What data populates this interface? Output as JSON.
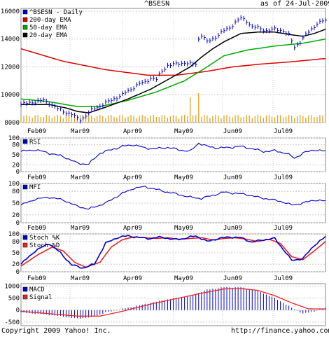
{
  "header": {
    "symbol": "^BSESN",
    "date_text": "as of 24-Jul-2009"
  },
  "footer": {
    "copyright": "Copyright 2009 Yahoo! Inc.",
    "url": "http://finance.yahoo.com/"
  },
  "months": [
    "Feb09",
    "Mar09",
    "Apr09",
    "May09",
    "Jun09",
    "Jul09"
  ],
  "chart_data": [
    {
      "type": "line",
      "legend": [
        "^BSESN - Daily",
        "200-day EMA",
        "50-day EMA",
        "20-day EMA"
      ],
      "colors": {
        "price": "#0000cc",
        "ema200": "#dd0000",
        "ema50": "#00aa00",
        "ema20": "#000000",
        "volume": "#e8a020"
      },
      "y_ticks": [
        "16000",
        "14000",
        "12000",
        "10000",
        "8000"
      ],
      "y_tick_values": [
        16000,
        14000,
        12000,
        10000,
        8000
      ],
      "ylim": [
        8000,
        16200
      ],
      "price_anchors": [
        [
          0,
          9300
        ],
        [
          5,
          9500
        ],
        [
          8,
          9600
        ],
        [
          10,
          9400
        ],
        [
          13,
          9000
        ],
        [
          15,
          8800
        ],
        [
          18,
          8600
        ],
        [
          20,
          8300
        ],
        [
          21,
          8200
        ],
        [
          23,
          8500
        ],
        [
          25,
          8900
        ],
        [
          28,
          9200
        ],
        [
          30,
          9400
        ],
        [
          33,
          9700
        ],
        [
          36,
          10000
        ],
        [
          39,
          10400
        ],
        [
          42,
          10800
        ],
        [
          44,
          10900
        ],
        [
          46,
          11200
        ],
        [
          48,
          11100
        ],
        [
          50,
          11700
        ],
        [
          52,
          12100
        ],
        [
          55,
          12200
        ],
        [
          58,
          12300
        ],
        [
          60,
          12200
        ],
        [
          62,
          12200
        ],
        [
          63,
          14000
        ],
        [
          64,
          14300
        ],
        [
          66,
          13800
        ],
        [
          68,
          14000
        ],
        [
          70,
          14300
        ],
        [
          72,
          14600
        ],
        [
          74,
          14800
        ],
        [
          76,
          15200
        ],
        [
          78,
          15500
        ],
        [
          80,
          15300
        ],
        [
          82,
          14900
        ],
        [
          84,
          14800
        ],
        [
          87,
          14600
        ],
        [
          90,
          14700
        ],
        [
          93,
          14600
        ],
        [
          95,
          14300
        ],
        [
          97,
          13400
        ],
        [
          99,
          13800
        ],
        [
          101,
          14300
        ],
        [
          103,
          14700
        ],
        [
          105,
          15100
        ],
        [
          107,
          15300
        ],
        [
          108,
          15300
        ]
      ],
      "ema200_anchors": [
        [
          0,
          13300
        ],
        [
          15,
          12400
        ],
        [
          30,
          11800
        ],
        [
          45,
          11400
        ],
        [
          55,
          11400
        ],
        [
          65,
          11650
        ],
        [
          75,
          12000
        ],
        [
          85,
          12200
        ],
        [
          95,
          12350
        ],
        [
          108,
          12600
        ]
      ],
      "ema50_anchors": [
        [
          0,
          9700
        ],
        [
          10,
          9500
        ],
        [
          20,
          9150
        ],
        [
          28,
          9150
        ],
        [
          38,
          9600
        ],
        [
          48,
          10200
        ],
        [
          58,
          11000
        ],
        [
          66,
          12000
        ],
        [
          72,
          12800
        ],
        [
          80,
          13200
        ],
        [
          90,
          13500
        ],
        [
          100,
          13700
        ],
        [
          108,
          14000
        ]
      ],
      "ema20_anchors": [
        [
          0,
          9300
        ],
        [
          10,
          9300
        ],
        [
          16,
          9050
        ],
        [
          20,
          8800
        ],
        [
          24,
          8700
        ],
        [
          30,
          9100
        ],
        [
          38,
          9700
        ],
        [
          46,
          10400
        ],
        [
          54,
          11300
        ],
        [
          60,
          12000
        ],
        [
          64,
          12700
        ],
        [
          68,
          13300
        ],
        [
          72,
          13800
        ],
        [
          78,
          14400
        ],
        [
          84,
          14500
        ],
        [
          90,
          14500
        ],
        [
          96,
          14300
        ],
        [
          100,
          14200
        ],
        [
          104,
          14400
        ],
        [
          108,
          14700
        ]
      ],
      "volume_spikes": [
        [
          60,
          12
        ],
        [
          63,
          14
        ]
      ]
    },
    {
      "type": "line",
      "legend": [
        "RSI"
      ],
      "colors": {
        "rsi": "#0000cc"
      },
      "y_ticks": [
        "100",
        "80",
        "50",
        "20",
        "0"
      ],
      "y_tick_values": [
        100,
        80,
        50,
        20,
        0
      ],
      "ylim": [
        0,
        100
      ],
      "rsi_anchors": [
        [
          0,
          60
        ],
        [
          5,
          65
        ],
        [
          10,
          55
        ],
        [
          15,
          45
        ],
        [
          20,
          25
        ],
        [
          24,
          22
        ],
        [
          28,
          55
        ],
        [
          32,
          65
        ],
        [
          36,
          75
        ],
        [
          40,
          80
        ],
        [
          44,
          70
        ],
        [
          48,
          68
        ],
        [
          52,
          72
        ],
        [
          56,
          65
        ],
        [
          60,
          60
        ],
        [
          63,
          85
        ],
        [
          66,
          75
        ],
        [
          70,
          70
        ],
        [
          74,
          72
        ],
        [
          78,
          75
        ],
        [
          82,
          68
        ],
        [
          86,
          60
        ],
        [
          90,
          62
        ],
        [
          94,
          55
        ],
        [
          97,
          40
        ],
        [
          100,
          55
        ],
        [
          104,
          65
        ],
        [
          108,
          60
        ]
      ]
    },
    {
      "type": "line",
      "legend": [
        "MFI"
      ],
      "colors": {
        "mfi": "#0000cc"
      },
      "y_ticks": [
        "100",
        "80",
        "50",
        "20",
        "0"
      ],
      "y_tick_values": [
        100,
        80,
        50,
        20,
        0
      ],
      "ylim": [
        0,
        100
      ],
      "mfi_anchors": [
        [
          0,
          45
        ],
        [
          5,
          60
        ],
        [
          10,
          65
        ],
        [
          15,
          58
        ],
        [
          20,
          42
        ],
        [
          24,
          35
        ],
        [
          30,
          50
        ],
        [
          36,
          75
        ],
        [
          40,
          88
        ],
        [
          44,
          92
        ],
        [
          48,
          85
        ],
        [
          52,
          78
        ],
        [
          56,
          72
        ],
        [
          60,
          65
        ],
        [
          64,
          62
        ],
        [
          68,
          70
        ],
        [
          72,
          78
        ],
        [
          76,
          75
        ],
        [
          80,
          72
        ],
        [
          84,
          65
        ],
        [
          88,
          60
        ],
        [
          92,
          55
        ],
        [
          96,
          45
        ],
        [
          100,
          50
        ],
        [
          104,
          58
        ],
        [
          108,
          55
        ]
      ]
    },
    {
      "type": "line",
      "legend": [
        "Stoch %K",
        "Stoch %D"
      ],
      "colors": {
        "k": "#0000cc",
        "d": "#ee2222"
      },
      "y_ticks": [
        "100",
        "80",
        "50",
        "20",
        "0"
      ],
      "y_tick_values": [
        100,
        80,
        50,
        20,
        0
      ],
      "ylim": [
        0,
        100
      ],
      "k_anchors": [
        [
          0,
          20
        ],
        [
          5,
          55
        ],
        [
          10,
          75
        ],
        [
          14,
          50
        ],
        [
          18,
          18
        ],
        [
          22,
          10
        ],
        [
          26,
          20
        ],
        [
          30,
          75
        ],
        [
          34,
          90
        ],
        [
          38,
          95
        ],
        [
          42,
          90
        ],
        [
          46,
          88
        ],
        [
          50,
          92
        ],
        [
          54,
          85
        ],
        [
          58,
          88
        ],
        [
          62,
          95
        ],
        [
          66,
          80
        ],
        [
          70,
          88
        ],
        [
          74,
          92
        ],
        [
          78,
          90
        ],
        [
          82,
          78
        ],
        [
          86,
          85
        ],
        [
          90,
          88
        ],
        [
          94,
          50
        ],
        [
          96,
          30
        ],
        [
          100,
          35
        ],
        [
          104,
          70
        ],
        [
          108,
          92
        ]
      ],
      "d_anchors": [
        [
          0,
          15
        ],
        [
          6,
          45
        ],
        [
          11,
          65
        ],
        [
          15,
          55
        ],
        [
          19,
          25
        ],
        [
          23,
          12
        ],
        [
          28,
          25
        ],
        [
          32,
          65
        ],
        [
          36,
          85
        ],
        [
          40,
          92
        ],
        [
          44,
          90
        ],
        [
          48,
          88
        ],
        [
          52,
          90
        ],
        [
          56,
          86
        ],
        [
          60,
          88
        ],
        [
          64,
          90
        ],
        [
          68,
          84
        ],
        [
          72,
          88
        ],
        [
          76,
          90
        ],
        [
          80,
          86
        ],
        [
          84,
          80
        ],
        [
          88,
          86
        ],
        [
          92,
          75
        ],
        [
          96,
          40
        ],
        [
          100,
          32
        ],
        [
          104,
          55
        ],
        [
          108,
          80
        ]
      ]
    },
    {
      "type": "bar",
      "legend": [
        "MACD",
        "Signal"
      ],
      "colors": {
        "macd": "#0000cc",
        "signal": "#ee2222"
      },
      "y_ticks": [
        "1000",
        "500",
        "0",
        "-500"
      ],
      "y_tick_values": [
        1000,
        500,
        0,
        -500
      ],
      "ylim": [
        -650,
        1100
      ],
      "macd_anchors": [
        [
          0,
          -100
        ],
        [
          10,
          -200
        ],
        [
          20,
          -350
        ],
        [
          25,
          -300
        ],
        [
          30,
          -100
        ],
        [
          40,
          150
        ],
        [
          50,
          400
        ],
        [
          60,
          600
        ],
        [
          66,
          850
        ],
        [
          72,
          950
        ],
        [
          78,
          950
        ],
        [
          84,
          800
        ],
        [
          90,
          500
        ],
        [
          96,
          100
        ],
        [
          100,
          -150
        ],
        [
          104,
          -50
        ],
        [
          108,
          100
        ]
      ],
      "signal_anchors": [
        [
          0,
          -50
        ],
        [
          10,
          -150
        ],
        [
          20,
          -250
        ],
        [
          28,
          -250
        ],
        [
          36,
          -50
        ],
        [
          46,
          250
        ],
        [
          56,
          500
        ],
        [
          64,
          700
        ],
        [
          72,
          880
        ],
        [
          78,
          900
        ],
        [
          84,
          820
        ],
        [
          90,
          600
        ],
        [
          96,
          300
        ],
        [
          102,
          50
        ],
        [
          108,
          50
        ]
      ]
    }
  ]
}
